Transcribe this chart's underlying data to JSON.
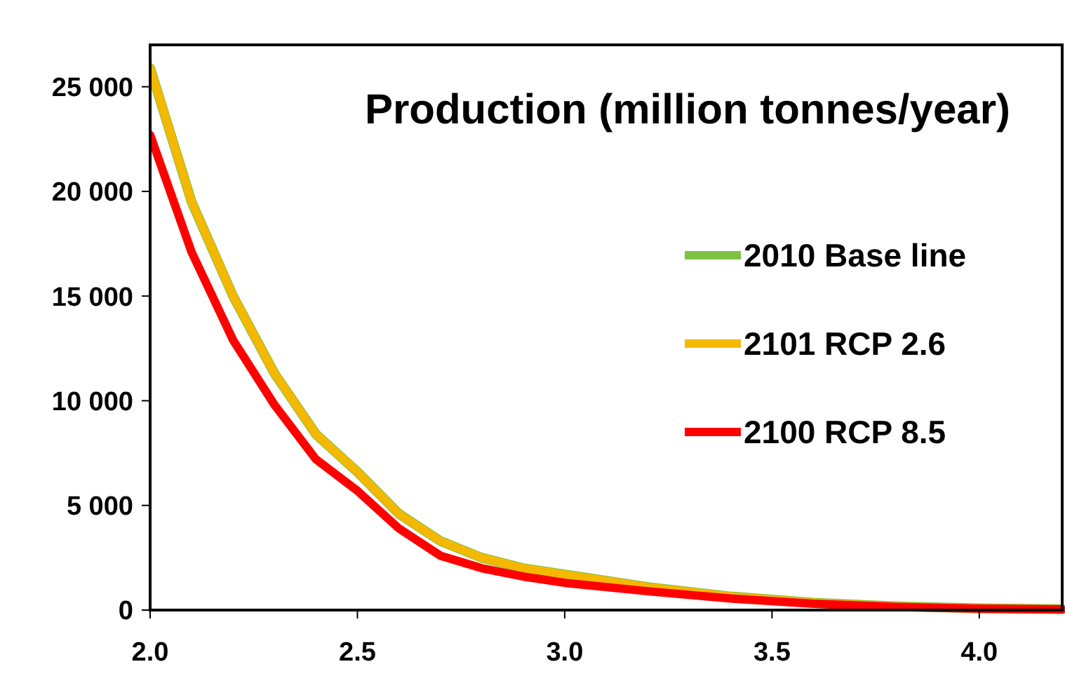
{
  "chart_data": {
    "type": "line",
    "title": "Production (million tonnes/year)",
    "x": [
      2.0,
      2.1,
      2.2,
      2.3,
      2.4,
      2.5,
      2.6,
      2.7,
      2.8,
      2.9,
      3.0,
      3.2,
      3.4,
      3.6,
      3.8,
      4.0,
      4.2
    ],
    "series": [
      {
        "name": "2010 Base line",
        "color": "#7dc242",
        "values": [
          25900,
          19500,
          15000,
          11300,
          8400,
          6600,
          4600,
          3300,
          2500,
          2000,
          1700,
          1100,
          650,
          350,
          180,
          80,
          40
        ]
      },
      {
        "name": "2101 RCP 2.6",
        "color": "#f5b800",
        "values": [
          25900,
          19500,
          15000,
          11300,
          8400,
          6600,
          4600,
          3300,
          2500,
          2000,
          1700,
          1100,
          650,
          350,
          180,
          80,
          40
        ]
      },
      {
        "name": "2100 RCP 8.5",
        "color": "#ff0000",
        "values": [
          22700,
          17100,
          12900,
          9800,
          7200,
          5700,
          3900,
          2600,
          2000,
          1600,
          1300,
          900,
          550,
          300,
          150,
          70,
          30
        ]
      }
    ],
    "xlim": [
      2.0,
      4.2
    ],
    "xticks": [
      {
        "value": 2,
        "label": "2.0"
      },
      2.5,
      {
        "value": 3,
        "label": "3.0"
      },
      3.5,
      {
        "value": 4,
        "label": "4.0"
      }
    ],
    "ylim": [
      0,
      27000
    ],
    "yticks": [
      0,
      {
        "value": 5000,
        "label": "5 000"
      },
      {
        "value": 10000,
        "label": "10 000"
      },
      {
        "value": 15000,
        "label": "15 000"
      },
      {
        "value": 20000,
        "label": "20 000"
      },
      {
        "value": 25000,
        "label": "25 000"
      }
    ],
    "legend": "right",
    "grid": false,
    "marker": "none",
    "line_style": "solid"
  }
}
